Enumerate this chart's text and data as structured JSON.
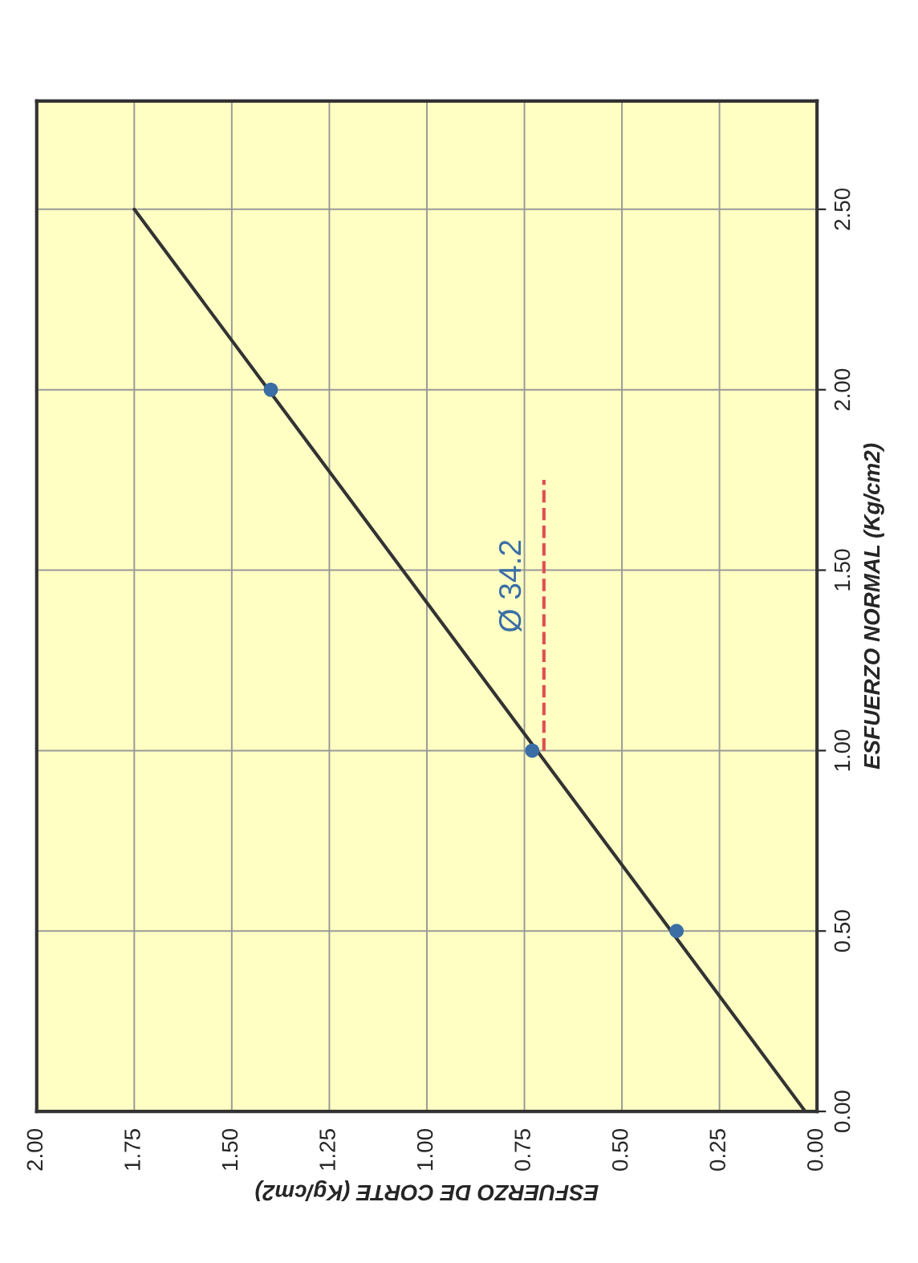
{
  "chart_data": {
    "type": "scatter",
    "xlabel": "ESFUERZO DE CORTE (Kg/cm2)",
    "ylabel": "ESFUERZO NORMAL (Kg/cm2)",
    "series": [
      {
        "type": "line",
        "color": "#333333",
        "x": [
          0.03,
          1.75
        ],
        "values": [
          0,
          2.5
        ],
        "marker": "none",
        "line_style": "solid"
      },
      {
        "color": "#3a6ea5",
        "x": [
          0.36,
          0.73,
          1.4
        ],
        "values": [
          0.5,
          1.0,
          2.0
        ],
        "marker": "circle"
      },
      {
        "type": "line",
        "color": "#e05050",
        "x": [
          0.7,
          0.7
        ],
        "values": [
          1.0,
          1.75
        ],
        "marker": "none",
        "line_style": "dashed"
      }
    ],
    "annotations": [
      "Ø 34.2"
    ],
    "xlim": [
      2.0,
      0.0
    ],
    "xticks": [
      {
        "value": 2.0,
        "label": "2.00"
      },
      {
        "value": 1.75,
        "label": "1.75"
      },
      {
        "value": 1.5,
        "label": "1.50"
      },
      {
        "value": 1.25,
        "label": "1.25"
      },
      {
        "value": 1.0,
        "label": "1.00"
      },
      {
        "value": 0.75,
        "label": "0.75"
      },
      {
        "value": 0.5,
        "label": "0.50"
      },
      {
        "value": 0.25,
        "label": "0.25"
      },
      {
        "value": 0.0,
        "label": "0.00"
      }
    ],
    "ylim": [
      0.0,
      2.8
    ],
    "yticks": [
      {
        "value": 0.0,
        "label": "0.00"
      },
      {
        "value": 0.5,
        "label": "0.50"
      },
      {
        "value": 1.0,
        "label": "1.00"
      },
      {
        "value": 1.5,
        "label": "1.50"
      },
      {
        "value": 2.0,
        "label": "2.00"
      },
      {
        "value": 2.5,
        "label": "2.50"
      }
    ],
    "grid": true
  }
}
